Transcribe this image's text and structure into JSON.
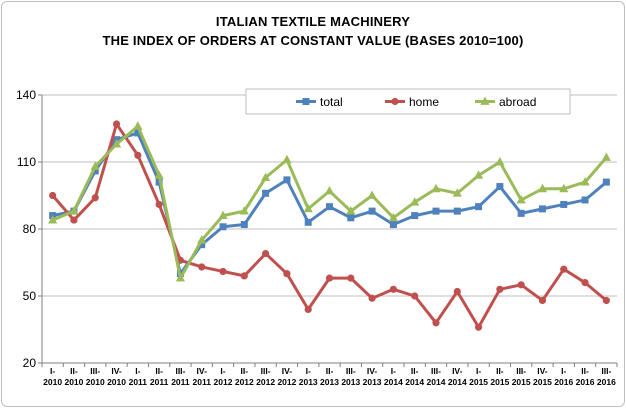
{
  "chart_data": {
    "type": "line",
    "title": "ITALIAN TEXTILE MACHINERY",
    "subtitle": "THE INDEX OF ORDERS AT CONSTANT VALUE (BASES 2010=100)",
    "xlabel": "",
    "ylabel": "",
    "ylim": [
      20,
      140
    ],
    "yticks": [
      20,
      50,
      80,
      110,
      140
    ],
    "grid": true,
    "legend_position": "top-right",
    "categories": [
      [
        "I-",
        "2010"
      ],
      [
        "II-",
        "2010"
      ],
      [
        "III-",
        "2010"
      ],
      [
        "IV-",
        "2010"
      ],
      [
        "I-",
        "2011"
      ],
      [
        "II-",
        "2011"
      ],
      [
        "III-",
        "2011"
      ],
      [
        "IV-",
        "2011"
      ],
      [
        "I-",
        "2012"
      ],
      [
        "II-",
        "2012"
      ],
      [
        "III-",
        "2012"
      ],
      [
        "IV-",
        "2012"
      ],
      [
        "I-",
        "2013"
      ],
      [
        "II-",
        "2013"
      ],
      [
        "III-",
        "2013"
      ],
      [
        "IV-",
        "2013"
      ],
      [
        "I-",
        "2014"
      ],
      [
        "II-",
        "2014"
      ],
      [
        "III-",
        "2014"
      ],
      [
        "IV-",
        "2014"
      ],
      [
        "I-",
        "2015"
      ],
      [
        "II-",
        "2015"
      ],
      [
        "III-",
        "2015"
      ],
      [
        "IV-",
        "2015"
      ],
      [
        "I-",
        "2016"
      ],
      [
        "II-",
        "2016"
      ],
      [
        "III-",
        "2016"
      ]
    ],
    "series": [
      {
        "name": "total",
        "color": "#4f81bd",
        "marker": "square",
        "values": [
          86,
          88,
          106,
          120,
          123,
          101,
          60,
          73,
          81,
          82,
          96,
          102,
          83,
          90,
          85,
          88,
          82,
          86,
          88,
          88,
          90,
          99,
          87,
          89,
          91,
          93,
          101
        ]
      },
      {
        "name": "home",
        "color": "#c0504d",
        "marker": "circle",
        "values": [
          95,
          84,
          94,
          127,
          113,
          91,
          66,
          63,
          61,
          59,
          69,
          60,
          44,
          58,
          58,
          49,
          53,
          50,
          38,
          52,
          36,
          53,
          55,
          48,
          62,
          56,
          48
        ]
      },
      {
        "name": "abroad",
        "color": "#9bbb59",
        "marker": "triangle",
        "values": [
          84,
          88,
          108,
          118,
          126,
          104,
          58,
          75,
          86,
          88,
          103,
          111,
          89,
          97,
          88,
          95,
          85,
          92,
          98,
          96,
          104,
          110,
          93,
          98,
          98,
          101,
          112
        ]
      }
    ]
  }
}
